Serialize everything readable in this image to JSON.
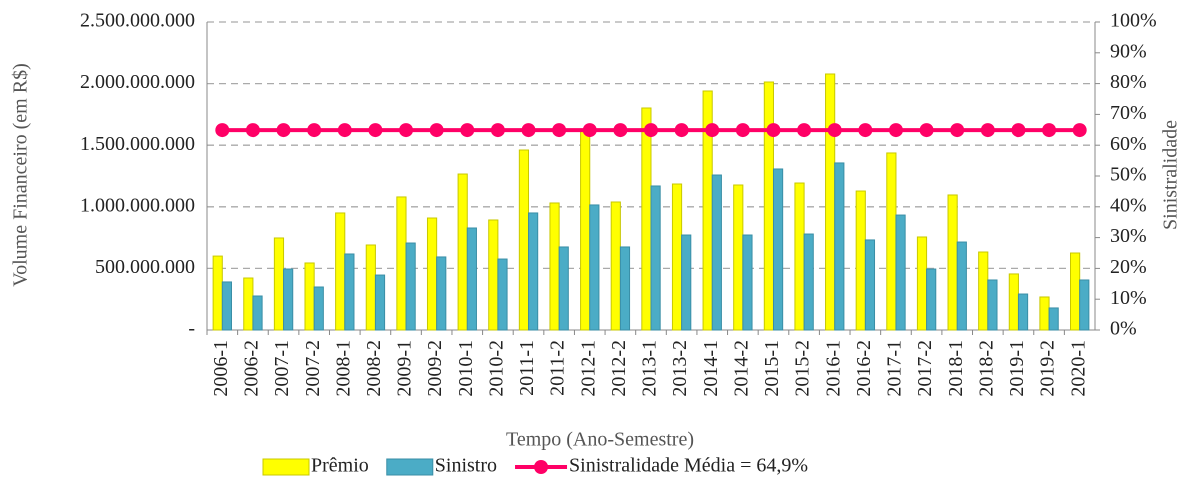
{
  "chart_data": {
    "type": "bar-line",
    "x_label": "Tempo (Ano-Semestre)",
    "y_label": "Volume Financeiro (em R$)",
    "y2_label": "Sinistralidade",
    "categories": [
      "2006-1",
      "2006-2",
      "2007-1",
      "2007-2",
      "2008-1",
      "2008-2",
      "2009-1",
      "2009-2",
      "2010-1",
      "2010-2",
      "2011-1",
      "2011-2",
      "2012-1",
      "2012-2",
      "2013-1",
      "2013-2",
      "2014-1",
      "2014-2",
      "2015-1",
      "2015-2",
      "2016-1",
      "2016-2",
      "2017-1",
      "2017-2",
      "2018-1",
      "2018-2",
      "2019-1",
      "2019-2",
      "2020-1"
    ],
    "series": [
      {
        "name": "Prêmio",
        "type": "bar",
        "color": "#ffff00",
        "edge": "#c8c800",
        "values": [
          600000000,
          422000000,
          747000000,
          544000000,
          950000000,
          690000000,
          1080000000,
          909000000,
          1266000000,
          893000000,
          1461000000,
          1031000000,
          1623000000,
          1039000000,
          1802000000,
          1185000000,
          1940000000,
          1177000000,
          2013000000,
          1193000000,
          2078000000,
          1128000000,
          1437000000,
          755000000,
          1096000000,
          633000000,
          455000000,
          268000000,
          625000000
        ]
      },
      {
        "name": "Sinistro",
        "type": "bar",
        "color": "#4bacc6",
        "edge": "#3a8ea6",
        "values": [
          390000000,
          276000000,
          495000000,
          349000000,
          617000000,
          446000000,
          706000000,
          593000000,
          828000000,
          576000000,
          950000000,
          674000000,
          1015000000,
          674000000,
          1169000000,
          771000000,
          1258000000,
          771000000,
          1307000000,
          779000000,
          1356000000,
          731000000,
          933000000,
          495000000,
          714000000,
          406000000,
          292000000,
          179000000,
          406000000
        ]
      },
      {
        "name": "Sinistralidade Média = 64,9%",
        "type": "line",
        "axis": "y2",
        "color": "#ff0066",
        "values": [
          64.9,
          64.9,
          64.9,
          64.9,
          64.9,
          64.9,
          64.9,
          64.9,
          64.9,
          64.9,
          64.9,
          64.9,
          64.9,
          64.9,
          64.9,
          64.9,
          64.9,
          64.9,
          64.9,
          64.9,
          64.9,
          64.9,
          64.9,
          64.9,
          64.9,
          64.9,
          64.9,
          64.9,
          64.9
        ]
      }
    ],
    "ylim": [
      0,
      2500000000
    ],
    "yticks": [
      {
        "value": 0,
        "label": "-"
      },
      {
        "value": 500000000,
        "label": "500.000.000"
      },
      {
        "value": 1000000000,
        "label": "1.000.000.000"
      },
      {
        "value": 1500000000,
        "label": "1.500.000.000"
      },
      {
        "value": 2000000000,
        "label": "2.000.000.000"
      },
      {
        "value": 2500000000,
        "label": "2.500.000.000"
      }
    ],
    "y2lim": [
      0,
      100
    ],
    "y2ticks": [
      {
        "value": 0,
        "label": "0%"
      },
      {
        "value": 10,
        "label": "10%"
      },
      {
        "value": 20,
        "label": "20%"
      },
      {
        "value": 30,
        "label": "30%"
      },
      {
        "value": 40,
        "label": "40%"
      },
      {
        "value": 50,
        "label": "50%"
      },
      {
        "value": 60,
        "label": "60%"
      },
      {
        "value": 70,
        "label": "70%"
      },
      {
        "value": 80,
        "label": "80%"
      },
      {
        "value": 90,
        "label": "90%"
      },
      {
        "value": 100,
        "label": "100%"
      }
    ],
    "grid": true
  }
}
